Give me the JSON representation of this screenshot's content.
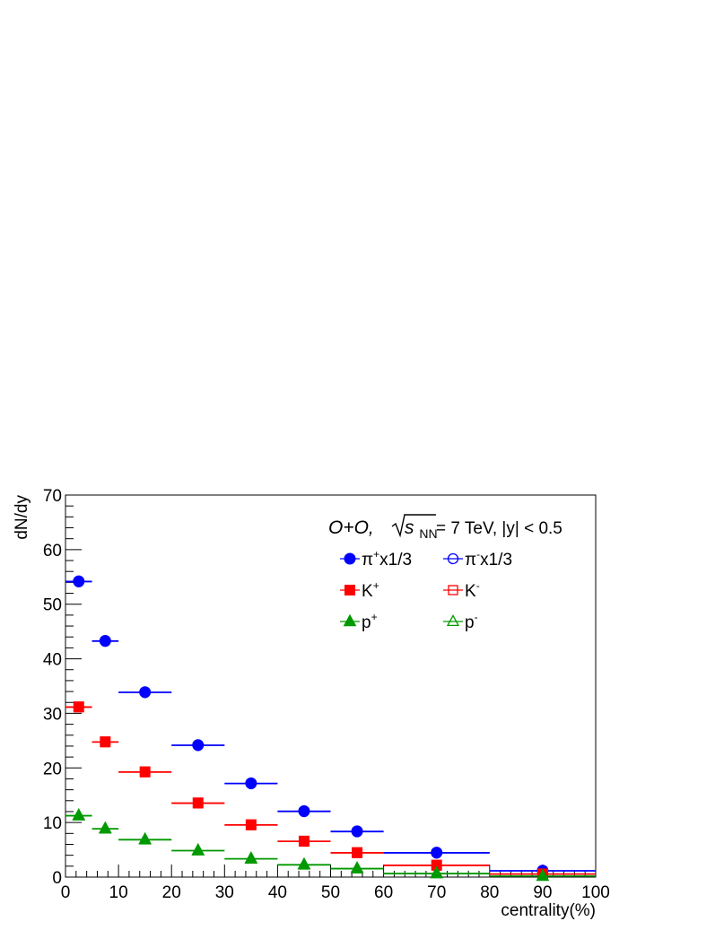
{
  "chart_data": {
    "type": "scatter",
    "title": "",
    "annotation": {
      "system": "O+O, ",
      "sqrt_s": "s",
      "sqrt_sub": "NN",
      "energy": " = 7 TeV, |y| < 0.5"
    },
    "xlabel": "centrality(%)",
    "ylabel": "dN/dy",
    "xlim": [
      0,
      100
    ],
    "ylim": [
      0,
      70
    ],
    "xticks": [
      "0",
      "10",
      "20",
      "30",
      "40",
      "50",
      "60",
      "70",
      "80",
      "90",
      "100"
    ],
    "yticks": [
      "0",
      "10",
      "20",
      "30",
      "40",
      "50",
      "60",
      "70"
    ],
    "bins": [
      [
        0,
        5
      ],
      [
        5,
        10
      ],
      [
        10,
        20
      ],
      [
        20,
        30
      ],
      [
        30,
        40
      ],
      [
        40,
        50
      ],
      [
        50,
        60
      ],
      [
        60,
        80
      ],
      [
        80,
        100
      ]
    ],
    "x": [
      2.5,
      7.5,
      15,
      25,
      35,
      45,
      55,
      70,
      90
    ],
    "series": [
      {
        "label": "π",
        "sup": "+",
        "suffix": "x1/3",
        "color": "#0000ff",
        "marker": "circle",
        "filled": true,
        "values": [
          54.2,
          43.3,
          33.9,
          24.2,
          17.2,
          12.1,
          8.4,
          4.5,
          1.2
        ]
      },
      {
        "label": "π",
        "sup": "-",
        "suffix": "x1/3",
        "color": "#0000ff",
        "marker": "circle",
        "filled": false,
        "values": [
          54.1,
          43.2,
          33.8,
          24.1,
          17.1,
          12.0,
          8.3,
          4.4,
          1.1
        ]
      },
      {
        "label": "K",
        "sup": "+",
        "suffix": "",
        "color": "#ff0000",
        "marker": "square",
        "filled": true,
        "values": [
          31.2,
          24.8,
          19.3,
          13.6,
          9.6,
          6.6,
          4.5,
          2.2,
          0.6
        ]
      },
      {
        "label": "K",
        "sup": "-",
        "suffix": "",
        "color": "#ff0000",
        "marker": "square",
        "filled": false,
        "values": [
          31.1,
          24.7,
          19.2,
          13.5,
          9.5,
          6.5,
          4.4,
          2.1,
          0.5
        ]
      },
      {
        "label": "p",
        "sup": "+",
        "suffix": "",
        "color": "#009900",
        "marker": "triangle",
        "filled": true,
        "values": [
          11.3,
          8.9,
          6.9,
          4.9,
          3.4,
          2.3,
          1.6,
          0.7,
          0.2
        ]
      },
      {
        "label": "p",
        "sup": "-",
        "suffix": "",
        "color": "#009900",
        "marker": "triangle",
        "filled": false,
        "values": [
          11.2,
          8.8,
          6.8,
          4.8,
          3.3,
          2.2,
          1.5,
          0.6,
          0.15
        ]
      }
    ],
    "legend_position": "top-right",
    "grid": false
  }
}
